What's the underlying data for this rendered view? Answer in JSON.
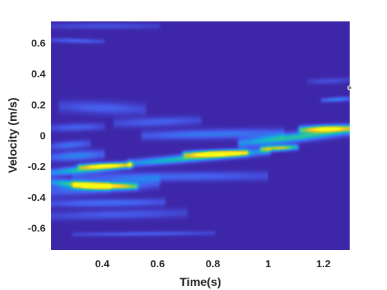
{
  "chart_data": {
    "type": "heatmap",
    "title": "",
    "xlabel": "Time(s)",
    "ylabel": "Velocity (m/s)",
    "xlim": [
      0.215,
      1.295
    ],
    "ylim": [
      -0.74,
      0.74
    ],
    "xticks": [
      {
        "value": 0.4,
        "label": "0.4"
      },
      {
        "value": 0.6,
        "label": "0.6"
      },
      {
        "value": 0.8,
        "label": "0.8"
      },
      {
        "value": 1.0,
        "label": "1"
      },
      {
        "value": 1.2,
        "label": "1.2"
      }
    ],
    "yticks": [
      {
        "value": 0.6,
        "label": "0.6"
      },
      {
        "value": 0.4,
        "label": "0.4"
      },
      {
        "value": 0.2,
        "label": "0.2"
      },
      {
        "value": 0.0,
        "label": "0"
      },
      {
        "value": -0.2,
        "label": "-0.2"
      },
      {
        "value": -0.4,
        "label": "-0.4"
      },
      {
        "value": -0.6,
        "label": "-0.6"
      }
    ],
    "colormap": "parula",
    "background_color": "#3e26a8",
    "grid": false,
    "ridges": [
      {
        "t0": 0.215,
        "t1": 0.42,
        "v0": -0.3,
        "v1": -0.33,
        "width": 0.025,
        "intensity": 0.55
      },
      {
        "t0": 0.3,
        "t1": 0.52,
        "v0": -0.32,
        "v1": -0.33,
        "width": 0.02,
        "intensity": 0.75
      },
      {
        "t0": 0.215,
        "t1": 0.5,
        "v0": -0.24,
        "v1": -0.19,
        "width": 0.025,
        "intensity": 0.55
      },
      {
        "t0": 0.32,
        "t1": 0.5,
        "v0": -0.2,
        "v1": -0.19,
        "width": 0.018,
        "intensity": 0.72
      },
      {
        "t0": 0.5,
        "t1": 1.0,
        "v0": -0.18,
        "v1": -0.1,
        "width": 0.025,
        "intensity": 0.55
      },
      {
        "t0": 0.7,
        "t1": 0.92,
        "v0": -0.12,
        "v1": -0.11,
        "width": 0.02,
        "intensity": 0.92
      },
      {
        "t0": 0.98,
        "t1": 1.1,
        "v0": -0.085,
        "v1": -0.075,
        "width": 0.018,
        "intensity": 0.82
      },
      {
        "t0": 0.9,
        "t1": 1.295,
        "v0": -0.05,
        "v1": 0.03,
        "width": 0.03,
        "intensity": 0.55
      },
      {
        "t0": 1.12,
        "t1": 1.295,
        "v0": 0.04,
        "v1": 0.05,
        "width": 0.022,
        "intensity": 0.97
      },
      {
        "t0": 0.55,
        "t1": 1.05,
        "v0": 0.0,
        "v1": 0.02,
        "width": 0.03,
        "intensity": 0.28
      },
      {
        "t0": 0.215,
        "t1": 0.6,
        "v0": -0.36,
        "v1": -0.3,
        "width": 0.04,
        "intensity": 0.3
      },
      {
        "t0": 0.215,
        "t1": 0.62,
        "v0": -0.44,
        "v1": -0.43,
        "width": 0.025,
        "intensity": 0.24
      },
      {
        "t0": 0.3,
        "t1": 1.0,
        "v0": -0.27,
        "v1": -0.26,
        "width": 0.03,
        "intensity": 0.22
      },
      {
        "t0": 0.215,
        "t1": 0.4,
        "v0": -0.14,
        "v1": -0.12,
        "width": 0.03,
        "intensity": 0.32
      },
      {
        "t0": 0.25,
        "t1": 0.55,
        "v0": 0.19,
        "v1": 0.17,
        "width": 0.04,
        "intensity": 0.2
      },
      {
        "t0": 0.45,
        "t1": 0.75,
        "v0": 0.08,
        "v1": 0.1,
        "width": 0.03,
        "intensity": 0.2
      },
      {
        "t0": 0.215,
        "t1": 0.4,
        "v0": 0.05,
        "v1": 0.06,
        "width": 0.025,
        "intensity": 0.2
      },
      {
        "t0": 1.2,
        "t1": 1.295,
        "v0": 0.23,
        "v1": 0.24,
        "width": 0.015,
        "intensity": 0.3
      },
      {
        "t0": 1.15,
        "t1": 1.295,
        "v0": 0.35,
        "v1": 0.36,
        "width": 0.02,
        "intensity": 0.14
      },
      {
        "t0": 0.215,
        "t1": 0.4,
        "v0": 0.62,
        "v1": 0.61,
        "width": 0.015,
        "intensity": 0.2
      },
      {
        "t0": 0.215,
        "t1": 0.6,
        "v0": 0.71,
        "v1": 0.71,
        "width": 0.02,
        "intensity": 0.14
      },
      {
        "t0": 0.215,
        "t1": 0.7,
        "v0": -0.52,
        "v1": -0.5,
        "width": 0.03,
        "intensity": 0.18
      },
      {
        "t0": 0.3,
        "t1": 0.8,
        "v0": -0.64,
        "v1": -0.63,
        "width": 0.015,
        "intensity": 0.18
      },
      {
        "t0": 0.215,
        "t1": 0.35,
        "v0": -0.07,
        "v1": -0.05,
        "width": 0.025,
        "intensity": 0.24
      }
    ],
    "cutoff": {
      "t": 1.0,
      "v_below": -0.2
    },
    "marker": {
      "x": 1.295,
      "y": 0.31
    }
  }
}
